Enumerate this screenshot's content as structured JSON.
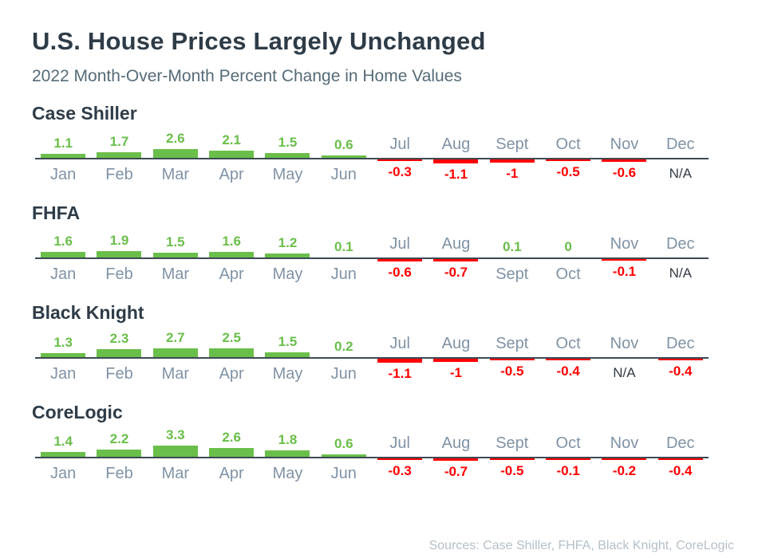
{
  "header": {
    "title": "U.S. House Prices Largely Unchanged",
    "subtitle": "2022 Month-Over-Month Percent Change in Home Values"
  },
  "footer": {
    "sources": "Sources: Case Shiller, FHFA, Black Knight, CoreLogic"
  },
  "colors": {
    "positive": "#6abf4a",
    "negative": "#ff0000",
    "na_text": "#333b44",
    "month_label": "#8093a6",
    "heading": "#2e3c48",
    "subtitle": "#566b77",
    "axis": "#3e4a54",
    "sources": "#b4c0c8"
  },
  "chart_data": [
    {
      "type": "bar",
      "title": "Case Shiller",
      "categories": [
        "Jan",
        "Feb",
        "Mar",
        "Apr",
        "May",
        "Jun",
        "Jul",
        "Aug",
        "Sept",
        "Oct",
        "Nov",
        "Dec"
      ],
      "values": [
        1.1,
        1.7,
        2.6,
        2.1,
        1.5,
        0.6,
        -0.3,
        -1.1,
        -1,
        -0.5,
        -0.6,
        null
      ],
      "display": [
        "1.1",
        "1.7",
        "2.6",
        "2.1",
        "1.5",
        "0.6",
        "-0.3",
        "-1.1",
        "-1",
        "-0.5",
        "-0.6",
        "N/A"
      ],
      "xlabel": "",
      "ylabel": "",
      "legend": "none",
      "grid": false
    },
    {
      "type": "bar",
      "title": "FHFA",
      "categories": [
        "Jan",
        "Feb",
        "Mar",
        "Apr",
        "May",
        "Jun",
        "Jul",
        "Aug",
        "Sept",
        "Oct",
        "Nov",
        "Dec"
      ],
      "values": [
        1.6,
        1.9,
        1.5,
        1.6,
        1.2,
        0.1,
        -0.6,
        -0.7,
        0.1,
        0,
        -0.1,
        null
      ],
      "display": [
        "1.6",
        "1.9",
        "1.5",
        "1.6",
        "1.2",
        "0.1",
        "-0.6",
        "-0.7",
        "0.1",
        "0",
        "-0.1",
        "N/A"
      ],
      "xlabel": "",
      "ylabel": "",
      "legend": "none",
      "grid": false
    },
    {
      "type": "bar",
      "title": "Black Knight",
      "categories": [
        "Jan",
        "Feb",
        "Mar",
        "Apr",
        "May",
        "Jun",
        "Jul",
        "Aug",
        "Sept",
        "Oct",
        "Nov",
        "Dec"
      ],
      "values": [
        1.3,
        2.3,
        2.7,
        2.5,
        1.5,
        0.2,
        -1.1,
        -1,
        -0.5,
        -0.4,
        null,
        -0.4
      ],
      "display": [
        "1.3",
        "2.3",
        "2.7",
        "2.5",
        "1.5",
        "0.2",
        "-1.1",
        "-1",
        "-0.5",
        "-0.4",
        "N/A",
        "-0.4"
      ],
      "xlabel": "",
      "ylabel": "",
      "legend": "none",
      "grid": false
    },
    {
      "type": "bar",
      "title": "CoreLogic",
      "categories": [
        "Jan",
        "Feb",
        "Mar",
        "Apr",
        "May",
        "Jun",
        "Jul",
        "Aug",
        "Sept",
        "Oct",
        "Nov",
        "Dec"
      ],
      "values": [
        1.4,
        2.2,
        3.3,
        2.6,
        1.8,
        0.6,
        -0.3,
        -0.7,
        -0.5,
        -0.1,
        -0.2,
        -0.4
      ],
      "display": [
        "1.4",
        "2.2",
        "3.3",
        "2.6",
        "1.8",
        "0.6",
        "-0.3",
        "-0.7",
        "-0.5",
        "-0.1",
        "-0.2",
        "-0.4"
      ],
      "xlabel": "",
      "ylabel": "",
      "legend": "none",
      "grid": false
    }
  ]
}
